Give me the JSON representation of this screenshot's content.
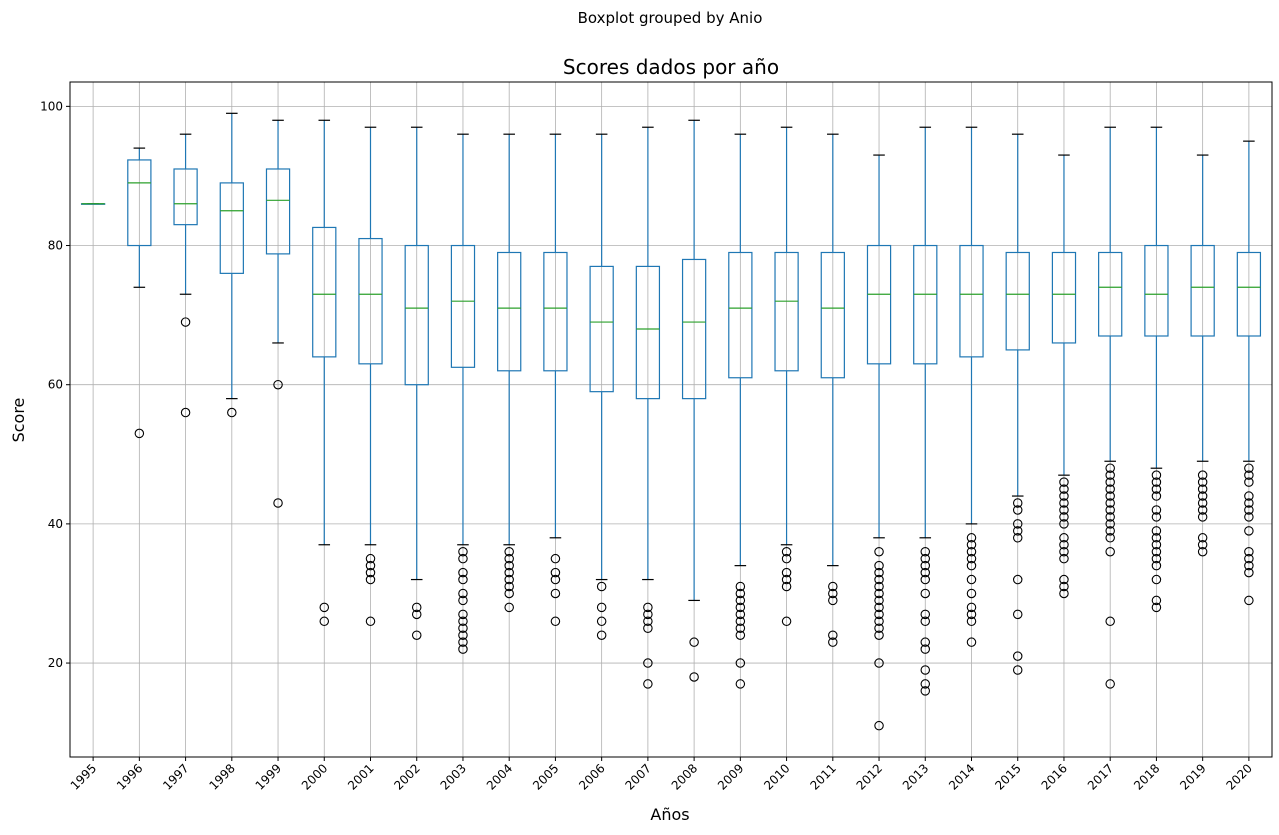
{
  "chart_data": {
    "type": "box",
    "suptitle": "Boxplot grouped by Anio",
    "title": "Scores dados por año",
    "xlabel": "Años",
    "ylabel": "Score",
    "ylim": [
      6.5,
      103.5
    ],
    "yticks": [
      20,
      40,
      60,
      80,
      100
    ],
    "grid": true,
    "xtick_rotation_deg": 45,
    "colors": {
      "box": "#1f77b4",
      "median": "#2ca02c",
      "whisker": "#1f77b4",
      "cap": "#000000",
      "flier": "#000000",
      "grid": "#b0b0b0"
    },
    "categories": [
      "1995",
      "1996",
      "1997",
      "1998",
      "1999",
      "2000",
      "2001",
      "2002",
      "2003",
      "2004",
      "2005",
      "2006",
      "2007",
      "2008",
      "2009",
      "2010",
      "2011",
      "2012",
      "2013",
      "2014",
      "2015",
      "2016",
      "2017",
      "2018",
      "2019",
      "2020"
    ],
    "boxes": [
      {
        "label": "1995",
        "whislo": 86,
        "q1": 86,
        "med": 86,
        "q3": 86,
        "whishi": 86,
        "fliers": []
      },
      {
        "label": "1996",
        "whislo": 74,
        "q1": 80,
        "med": 89,
        "q3": 92.3,
        "whishi": 94,
        "fliers": [
          53
        ]
      },
      {
        "label": "1997",
        "whislo": 73,
        "q1": 83,
        "med": 86,
        "q3": 91,
        "whishi": 96,
        "fliers": [
          69,
          56
        ]
      },
      {
        "label": "1998",
        "whislo": 58,
        "q1": 76,
        "med": 85,
        "q3": 89,
        "whishi": 99,
        "fliers": [
          56
        ]
      },
      {
        "label": "1999",
        "whislo": 66,
        "q1": 78.8,
        "med": 86.5,
        "q3": 91,
        "whishi": 98,
        "fliers": [
          60,
          43
        ]
      },
      {
        "label": "2000",
        "whislo": 37,
        "q1": 64,
        "med": 73,
        "q3": 82.6,
        "whishi": 98,
        "fliers": [
          28,
          26
        ]
      },
      {
        "label": "2001",
        "whislo": 37,
        "q1": 63,
        "med": 73,
        "q3": 81,
        "whishi": 97,
        "fliers": [
          35,
          34,
          33,
          32,
          26
        ]
      },
      {
        "label": "2002",
        "whislo": 32,
        "q1": 60,
        "med": 71,
        "q3": 80,
        "whishi": 97,
        "fliers": [
          28,
          27,
          24
        ]
      },
      {
        "label": "2003",
        "whislo": 37,
        "q1": 62.5,
        "med": 72,
        "q3": 80,
        "whishi": 96,
        "fliers": [
          36,
          35,
          33,
          32,
          30,
          29,
          27,
          26,
          25,
          24,
          23,
          22
        ]
      },
      {
        "label": "2004",
        "whislo": 37,
        "q1": 62,
        "med": 71,
        "q3": 79,
        "whishi": 96,
        "fliers": [
          36,
          35,
          34,
          33,
          32,
          31,
          30,
          28
        ]
      },
      {
        "label": "2005",
        "whislo": 38,
        "q1": 62,
        "med": 71,
        "q3": 79,
        "whishi": 96,
        "fliers": [
          35,
          33,
          32,
          30,
          26
        ]
      },
      {
        "label": "2006",
        "whislo": 32,
        "q1": 59,
        "med": 69,
        "q3": 77,
        "whishi": 96,
        "fliers": [
          31,
          28,
          26,
          24
        ]
      },
      {
        "label": "2007",
        "whislo": 32,
        "q1": 58,
        "med": 68,
        "q3": 77,
        "whishi": 97,
        "fliers": [
          28,
          27,
          26,
          25,
          20,
          17
        ]
      },
      {
        "label": "2008",
        "whislo": 29,
        "q1": 58,
        "med": 69,
        "q3": 78,
        "whishi": 98,
        "fliers": [
          23,
          18
        ]
      },
      {
        "label": "2009",
        "whislo": 34,
        "q1": 61,
        "med": 71,
        "q3": 79,
        "whishi": 96,
        "fliers": [
          31,
          30,
          29,
          28,
          27,
          26,
          25,
          24,
          20,
          17
        ]
      },
      {
        "label": "2010",
        "whislo": 37,
        "q1": 62,
        "med": 72,
        "q3": 79,
        "whishi": 97,
        "fliers": [
          36,
          35,
          33,
          32,
          31,
          26
        ]
      },
      {
        "label": "2011",
        "whislo": 34,
        "q1": 61,
        "med": 71,
        "q3": 79,
        "whishi": 96,
        "fliers": [
          31,
          30,
          29,
          24,
          23
        ]
      },
      {
        "label": "2012",
        "whislo": 38,
        "q1": 63,
        "med": 73,
        "q3": 80,
        "whishi": 93,
        "fliers": [
          36,
          34,
          33,
          32,
          31,
          30,
          29,
          28,
          27,
          26,
          25,
          24,
          20,
          11
        ]
      },
      {
        "label": "2013",
        "whislo": 38,
        "q1": 63,
        "med": 73,
        "q3": 80,
        "whishi": 97,
        "fliers": [
          36,
          35,
          34,
          33,
          32,
          30,
          27,
          26,
          23,
          22,
          19,
          17,
          16
        ]
      },
      {
        "label": "2014",
        "whislo": 40,
        "q1": 64,
        "med": 73,
        "q3": 80,
        "whishi": 97,
        "fliers": [
          38,
          37,
          36,
          35,
          34,
          32,
          30,
          28,
          27,
          26,
          23
        ]
      },
      {
        "label": "2015",
        "whislo": 44,
        "q1": 65,
        "med": 73,
        "q3": 79,
        "whishi": 96,
        "fliers": [
          43,
          42,
          40,
          39,
          38,
          32,
          27,
          21,
          19
        ]
      },
      {
        "label": "2016",
        "whislo": 47,
        "q1": 66,
        "med": 73,
        "q3": 79,
        "whishi": 93,
        "fliers": [
          46,
          45,
          44,
          43,
          42,
          41,
          40,
          38,
          37,
          36,
          35,
          32,
          31,
          30
        ]
      },
      {
        "label": "2017",
        "whislo": 49,
        "q1": 67,
        "med": 74,
        "q3": 79,
        "whishi": 97,
        "fliers": [
          48,
          47,
          46,
          45,
          44,
          43,
          42,
          41,
          40,
          39,
          38,
          36,
          26,
          17
        ]
      },
      {
        "label": "2018",
        "whislo": 48,
        "q1": 67,
        "med": 73,
        "q3": 80,
        "whishi": 97,
        "fliers": [
          47,
          46,
          45,
          44,
          42,
          41,
          39,
          38,
          37,
          36,
          35,
          34,
          32,
          29,
          28
        ]
      },
      {
        "label": "2019",
        "whislo": 49,
        "q1": 67,
        "med": 74,
        "q3": 80,
        "whishi": 93,
        "fliers": [
          47,
          46,
          45,
          44,
          43,
          42,
          41,
          38,
          37,
          36
        ]
      },
      {
        "label": "2020",
        "whislo": 49,
        "q1": 67,
        "med": 74,
        "q3": 79,
        "whishi": 95,
        "fliers": [
          48,
          47,
          46,
          44,
          43,
          42,
          41,
          39,
          36,
          35,
          34,
          33,
          29
        ]
      }
    ]
  }
}
